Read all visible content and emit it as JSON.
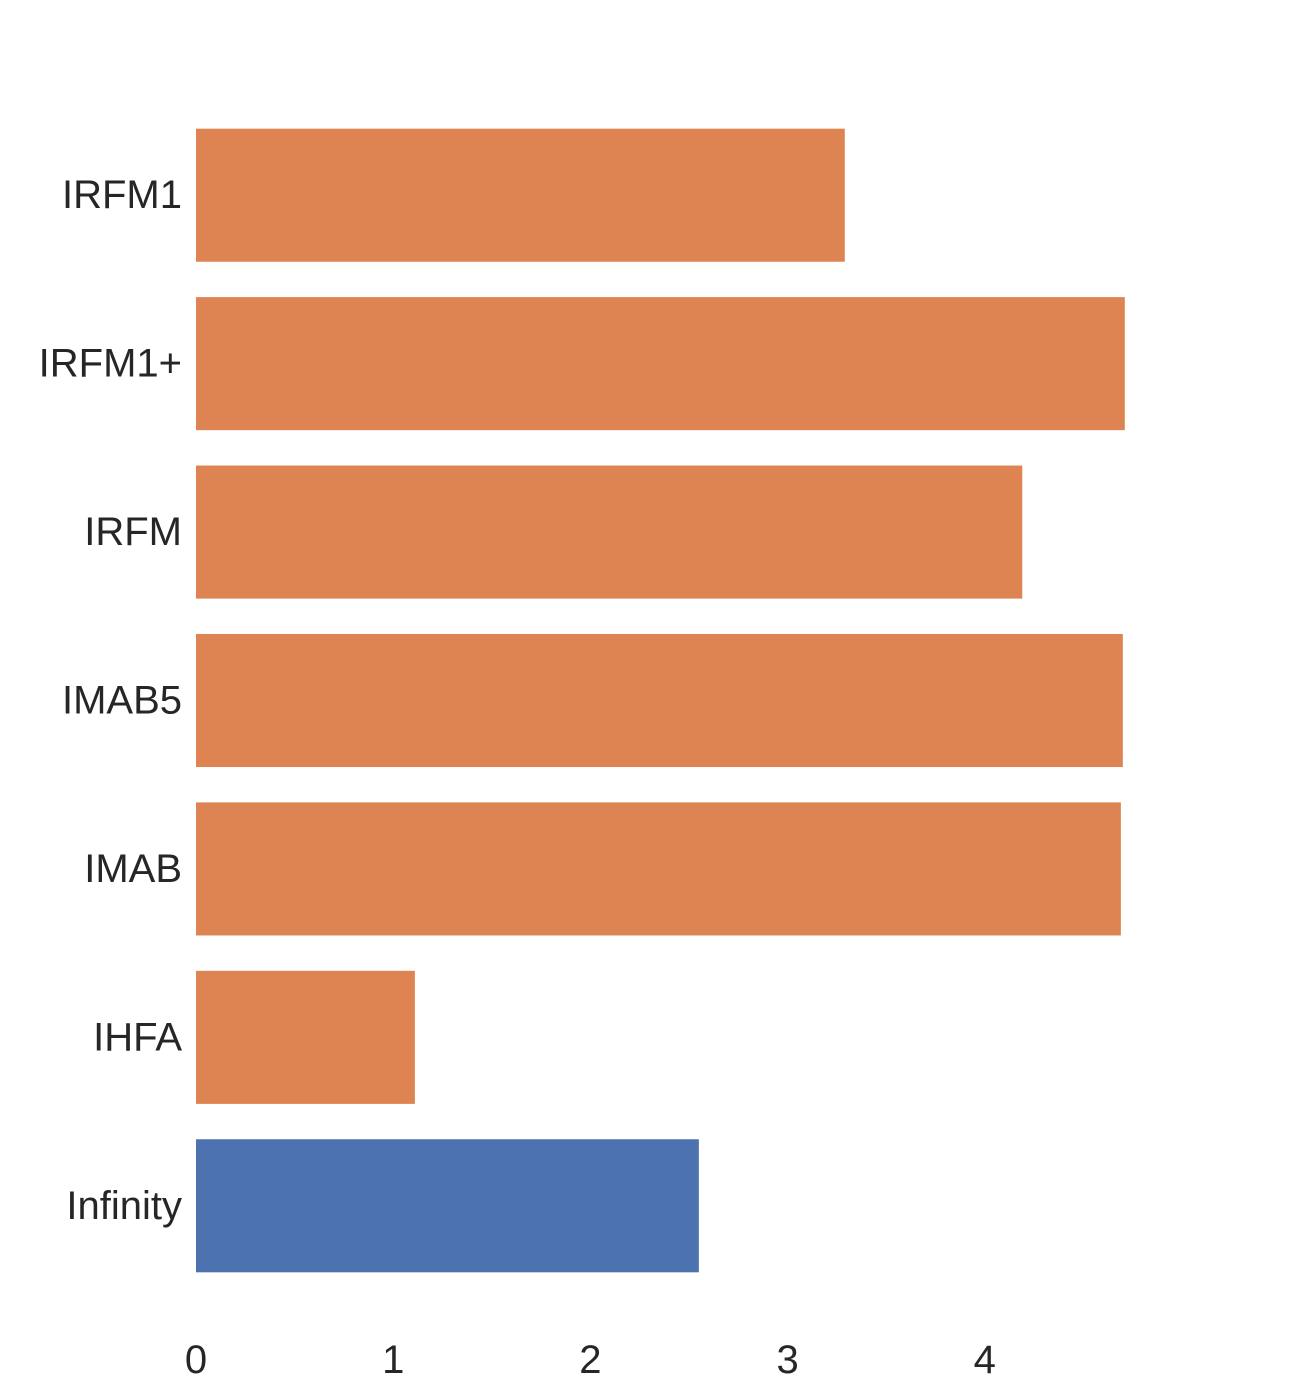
{
  "chart_data": {
    "type": "bar",
    "orientation": "horizontal",
    "title": "",
    "xlabel": "",
    "ylabel": "",
    "categories": [
      "IRFM1",
      "IRFM1+",
      "IRFM",
      "IMAB5",
      "IMAB",
      "IHFA",
      "Infinity"
    ],
    "values": [
      3.29,
      4.71,
      4.19,
      4.7,
      4.69,
      1.11,
      2.55
    ],
    "colors": [
      "#dd8452",
      "#dd8452",
      "#dd8452",
      "#dd8452",
      "#dd8452",
      "#dd8452",
      "#4c72b0"
    ],
    "xlim": [
      0,
      5.5
    ],
    "xticks": [
      0,
      1,
      2,
      3,
      4
    ],
    "grid": false,
    "legend": "none"
  }
}
